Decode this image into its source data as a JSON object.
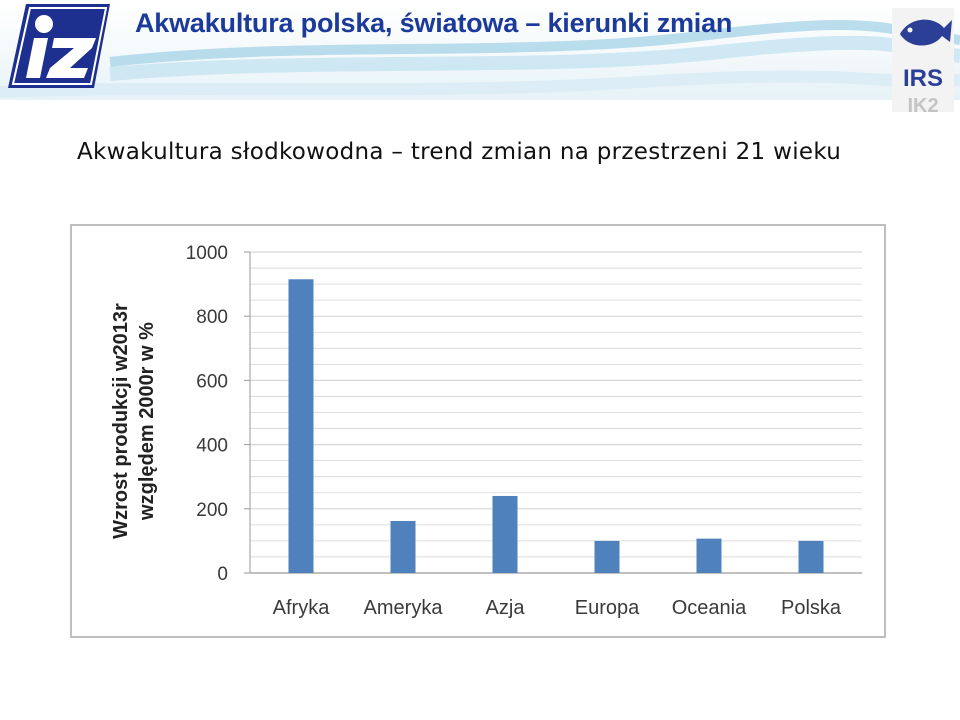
{
  "slide": {
    "title": "Akwakultura polska, światowa – kierunki zmian",
    "subtitle": "Akwakultura słodkowodna – trend zmian na przestrzeni 21 wieku"
  },
  "logos": {
    "left": "IZ",
    "right_top": "IRS",
    "right_bottom": "IK2"
  },
  "colors": {
    "title": "#1b3a9a",
    "bar": "#4f81bd",
    "header_wave": "#6fb3d6"
  },
  "chart_data": {
    "type": "bar",
    "categories": [
      "Afryka",
      "Ameryka",
      "Azja",
      "Europa",
      "Oceania",
      "Polska"
    ],
    "values": [
      915,
      162,
      240,
      100,
      107,
      100
    ],
    "ylabel_line1": "Wzrost produkcji w2013r",
    "ylabel_line2": "względem 2000r w %",
    "ylim": [
      0,
      1000
    ],
    "yticks": [
      "0",
      "200",
      "400",
      "600",
      "800",
      "1000"
    ],
    "grid": true,
    "legend": "none"
  }
}
